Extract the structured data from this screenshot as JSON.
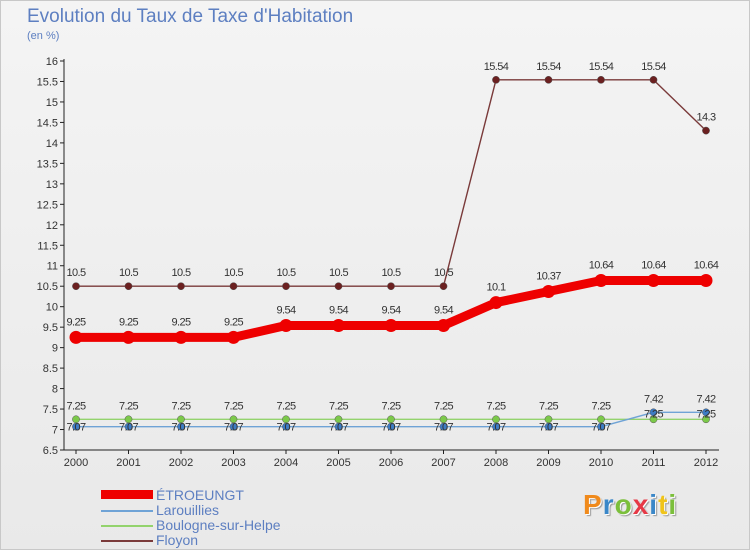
{
  "header": {
    "title": "Evolution du Taux de Taxe d'Habitation",
    "subtitle": "(en %)"
  },
  "logo": {
    "text": "Proxiti",
    "letter_colors": [
      "#f08a1c",
      "#3a87c8",
      "#7bbf3b",
      "#e63946",
      "#3a87c8",
      "#f0c419",
      "#7bbf3b"
    ]
  },
  "chart_data": {
    "type": "line",
    "x": [
      "2000",
      "2001",
      "2002",
      "2003",
      "2004",
      "2005",
      "2006",
      "2007",
      "2008",
      "2009",
      "2010",
      "2011",
      "2012"
    ],
    "ylim": [
      6.5,
      16
    ],
    "yticks": [
      "6.5",
      "7",
      "7.5",
      "8",
      "8.5",
      "9",
      "9.5",
      "10",
      "10.5",
      "11",
      "11.5",
      "12",
      "12.5",
      "13",
      "13.5",
      "14",
      "14.5",
      "15",
      "15.5",
      "16"
    ],
    "legend_position": "bottom-left",
    "grid": false,
    "series": [
      {
        "name": "ÉTROEUNGT",
        "color": "#ee0000",
        "marker_color": "#ee0000",
        "width": "thick",
        "values": [
          9.25,
          9.25,
          9.25,
          9.25,
          9.54,
          9.54,
          9.54,
          9.54,
          10.1,
          10.37,
          10.64,
          10.64,
          10.64
        ],
        "labels": [
          "9.25",
          "9.25",
          "9.25",
          "9.25",
          "9.54",
          "9.54",
          "9.54",
          "9.54",
          "10.1",
          "10.37",
          "10.64",
          "10.64",
          "10.64"
        ]
      },
      {
        "name": "Larouillies",
        "color": "#6fa3d6",
        "marker_color": "#3e7cc4",
        "width": "thin",
        "values": [
          7.07,
          7.07,
          7.07,
          7.07,
          7.07,
          7.07,
          7.07,
          7.07,
          7.07,
          7.07,
          7.07,
          7.42,
          7.42
        ],
        "labels": [
          "7.07",
          "7.07",
          "7.07",
          "7.07",
          "7.07",
          "7.07",
          "7.07",
          "7.07",
          "7.07",
          "7.07",
          "7.07",
          "7.42",
          "7.42"
        ]
      },
      {
        "name": "Boulogne-sur-Helpe",
        "color": "#93d36d",
        "marker_color": "#7cc94a",
        "width": "thin",
        "values": [
          7.25,
          7.25,
          7.25,
          7.25,
          7.25,
          7.25,
          7.25,
          7.25,
          7.25,
          7.25,
          7.25,
          7.25,
          7.25
        ],
        "labels": [
          "7.25",
          "7.25",
          "7.25",
          "7.25",
          "7.25",
          "7.25",
          "7.25",
          "7.25",
          "7.25",
          "7.25",
          "7.25",
          "7.25",
          "7.25"
        ]
      },
      {
        "name": "Floyon",
        "color": "#7a3a3a",
        "marker_color": "#6b2020",
        "width": "thin",
        "values": [
          10.5,
          10.5,
          10.5,
          10.5,
          10.5,
          10.5,
          10.5,
          10.5,
          15.54,
          15.54,
          15.54,
          15.54,
          14.3
        ],
        "labels": [
          "10.5",
          "10.5",
          "10.5",
          "10.5",
          "10.5",
          "10.5",
          "10.5",
          "10.5",
          "15.54",
          "15.54",
          "15.54",
          "15.54",
          "14.3"
        ]
      }
    ]
  }
}
